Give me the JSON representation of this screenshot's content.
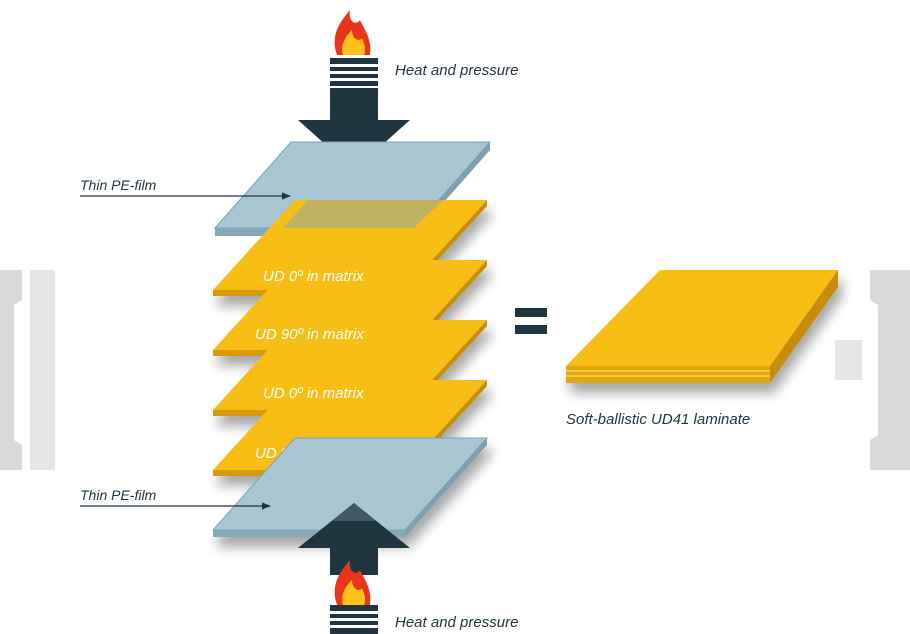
{
  "diagram": {
    "heat_top_label": "Heat and pressure",
    "heat_bottom_label": "Heat and pressure",
    "film_top_label": "Thin PE-film",
    "film_bottom_label": "Thin PE-film",
    "layers": [
      {
        "label": "UD 0º in matrix"
      },
      {
        "label": "UD 90º in matrix"
      },
      {
        "label": "UD 0º in matrix"
      },
      {
        "label": "UD 90º in matrix"
      }
    ],
    "equals_sign": "=",
    "result_label": "Soft-ballistic UD41 laminate"
  },
  "colors": {
    "ud_layer": "#F7BE16",
    "ud_layer_edge": "#D69A0A",
    "pe_film": "#A9C7D3",
    "pe_film_edge": "#7DA3B4",
    "arrow": "#1F3540",
    "flame_outer": "#E8351C",
    "flame_inner": "#FFC11A",
    "deco_gray": "#D9D9D9"
  }
}
